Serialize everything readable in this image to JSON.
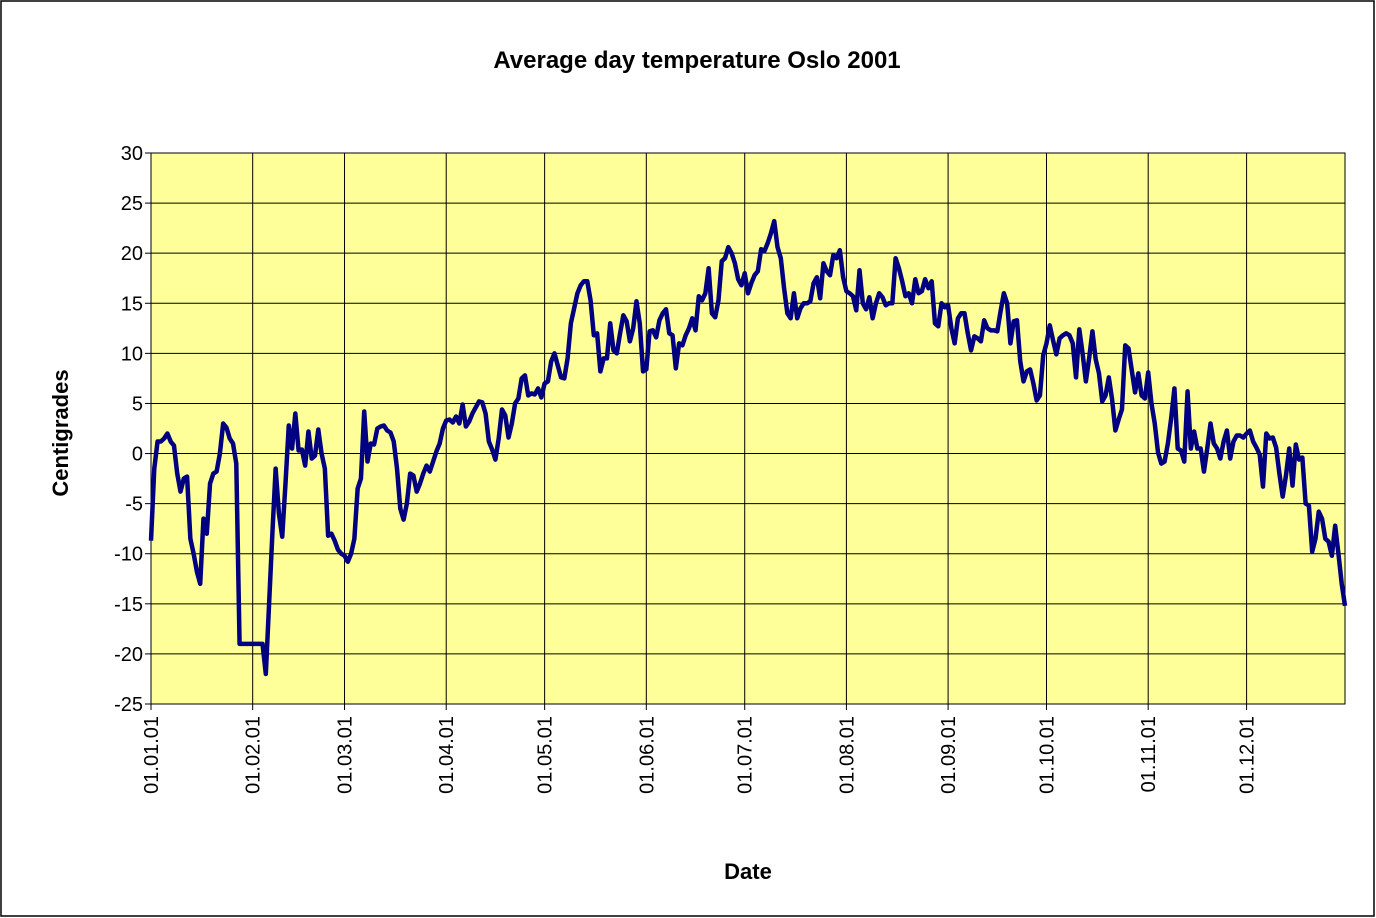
{
  "chart_data": {
    "type": "line",
    "title": "Average day temperature Oslo 2001",
    "xlabel": "Date",
    "ylabel": "Centigrades",
    "color": "#000080",
    "background": "#ffff99",
    "grid": true,
    "ylim": [
      -25,
      30
    ],
    "yticks": [
      -25,
      -20,
      -15,
      -10,
      -5,
      0,
      5,
      10,
      15,
      20,
      25,
      30
    ],
    "categories": [
      "01.01.01",
      null,
      null,
      null,
      null,
      null,
      null,
      null,
      null,
      null,
      null,
      null,
      null,
      null,
      null,
      null,
      null,
      null,
      null,
      null,
      null,
      null,
      null,
      null,
      null,
      null,
      null,
      null,
      null,
      null,
      null,
      "01.02.01",
      null,
      null,
      null,
      null,
      null,
      null,
      null,
      null,
      null,
      null,
      null,
      null,
      null,
      null,
      null,
      null,
      null,
      null,
      null,
      null,
      null,
      null,
      null,
      null,
      null,
      null,
      null,
      "01.03.01",
      null,
      null,
      null,
      null,
      null,
      null,
      null,
      null,
      null,
      null,
      null,
      null,
      null,
      null,
      null,
      null,
      null,
      null,
      null,
      null,
      null,
      null,
      null,
      null,
      null,
      null,
      null,
      null,
      null,
      null,
      "01.04.01",
      null,
      null,
      null,
      null,
      null,
      null,
      null,
      null,
      null,
      null,
      null,
      null,
      null,
      null,
      null,
      null,
      null,
      null,
      null,
      null,
      null,
      null,
      null,
      null,
      null,
      null,
      null,
      null,
      null,
      "01.05.01",
      null,
      null,
      null,
      null,
      null,
      null,
      null,
      null,
      null,
      null,
      null,
      null,
      null,
      null,
      null,
      null,
      null,
      null,
      null,
      null,
      null,
      null,
      null,
      null,
      null,
      null,
      null,
      null,
      null,
      null,
      "01.06.01",
      null,
      null,
      null,
      null,
      null,
      null,
      null,
      null,
      null,
      null,
      null,
      null,
      null,
      null,
      null,
      null,
      null,
      null,
      null,
      null,
      null,
      null,
      null,
      null,
      null,
      null,
      null,
      null,
      null,
      "01.07.01",
      null,
      null,
      null,
      null,
      null,
      null,
      null,
      null,
      null,
      null,
      null,
      null,
      null,
      null,
      null,
      null,
      null,
      null,
      null,
      null,
      null,
      null,
      null,
      null,
      null,
      null,
      null,
      null,
      null,
      null,
      "01.08.01",
      null,
      null,
      null,
      null,
      null,
      null,
      null,
      null,
      null,
      null,
      null,
      null,
      null,
      null,
      null,
      null,
      null,
      null,
      null,
      null,
      null,
      null,
      null,
      null,
      null,
      null,
      null,
      null,
      null,
      null,
      "01.09.01",
      null,
      null,
      null,
      null,
      null,
      null,
      null,
      null,
      null,
      null,
      null,
      null,
      null,
      null,
      null,
      null,
      null,
      null,
      null,
      null,
      null,
      null,
      null,
      null,
      null,
      null,
      null,
      null,
      null,
      "01.10.01",
      null,
      null,
      null,
      null,
      null,
      null,
      null,
      null,
      null,
      null,
      null,
      null,
      null,
      null,
      null,
      null,
      null,
      null,
      null,
      null,
      null,
      null,
      null,
      null,
      null,
      null,
      null,
      null,
      null,
      null,
      "01.11.01",
      null,
      null,
      null,
      null,
      null,
      null,
      null,
      null,
      null,
      null,
      null,
      null,
      null,
      null,
      null,
      null,
      null,
      null,
      null,
      null,
      null,
      null,
      null,
      null,
      null,
      null,
      null,
      null,
      null,
      "01.12.01",
      null,
      null,
      null,
      null,
      null,
      null,
      null,
      null,
      null,
      null,
      null,
      null,
      null,
      null,
      null,
      null,
      null,
      null,
      null,
      null,
      null,
      null,
      null,
      null,
      null,
      null,
      null,
      null,
      null,
      null
    ],
    "values": [
      -8.7,
      -1.5,
      1.2,
      1.2,
      1.5,
      2,
      1.2,
      0.8,
      -2,
      -3.8,
      -2.5,
      -2.3,
      -8.5,
      -10,
      -11.8,
      -13,
      -6.5,
      -8,
      -3,
      -2,
      -1.8,
      0,
      3,
      2.6,
      1.5,
      1,
      -1,
      -19,
      -19,
      -19,
      -19,
      -19,
      -19,
      -19,
      -19,
      -22,
      -15,
      -8,
      -1.5,
      -6,
      -8.3,
      -3,
      2.8,
      0.5,
      4,
      0.3,
      0.4,
      -1.2,
      2.2,
      -0.5,
      -0.2,
      2.4,
      0,
      -1.5,
      -8.2,
      -8,
      -8.7,
      -9.6,
      -10,
      -10.2,
      -10.8,
      -10,
      -8.5,
      -3.5,
      -2.5,
      4.2,
      -0.8,
      1,
      0.9,
      2.5,
      2.7,
      2.8,
      2.3,
      2.1,
      1.2,
      -1.5,
      -5.5,
      -6.6,
      -5,
      -2,
      -2.2,
      -3.8,
      -3,
      -2,
      -1.2,
      -1.8,
      -0.8,
      0.2,
      1,
      2.5,
      3.3,
      3.4,
      3.1,
      3.7,
      3,
      4.9,
      2.7,
      3.2,
      4,
      4.6,
      5.2,
      5.1,
      4,
      1.2,
      0.4,
      -0.6,
      1.5,
      4.4,
      3.8,
      1.6,
      3,
      5,
      5.5,
      7.5,
      7.8,
      5.8,
      6,
      5.9,
      6.5,
      5.6,
      7,
      7.2,
      9.2,
      10,
      8.8,
      7.6,
      7.5,
      9.5,
      13,
      14.5,
      16,
      16.8,
      17.2,
      17.2,
      15.3,
      11.8,
      12,
      8.2,
      9.5,
      9.5,
      13,
      10.3,
      10,
      12,
      13.8,
      13.2,
      11.2,
      12.5,
      15.2,
      13,
      8.2,
      8.4,
      12.2,
      12.3,
      11.6,
      13.3,
      14,
      14.4,
      12,
      11.8,
      8.5,
      11,
      10.8,
      11.8,
      12.5,
      13.5,
      12.3,
      15.7,
      15.3,
      16,
      18.5,
      14,
      13.6,
      15.3,
      19.2,
      19.5,
      20.6,
      20,
      19,
      17.4,
      16.8,
      18,
      16,
      17,
      17.8,
      18.2,
      20.4,
      20.2,
      21,
      22,
      23.2,
      20.6,
      19.5,
      16.5,
      14,
      13.5,
      16,
      13.5,
      14.5,
      15,
      15,
      15.2,
      17,
      17.6,
      15.5,
      19,
      18.2,
      17.8,
      19.8,
      19.5,
      20.3,
      17.6,
      16.2,
      16,
      15.7,
      14.3,
      18.3,
      15,
      14.4,
      15.6,
      13.5,
      15,
      16,
      15.6,
      14.8,
      15,
      15,
      19.5,
      18.5,
      17.2,
      15.7,
      16,
      15,
      17.4,
      16,
      16.2,
      17.4,
      16.5,
      17.2,
      13,
      12.7,
      15,
      14.6,
      14.8,
      12.5,
      11,
      13.5,
      14,
      14,
      12,
      10.3,
      11.7,
      11.5,
      11.2,
      13.3,
      12.5,
      12.3,
      12.3,
      12.2,
      14.2,
      16,
      15,
      11,
      13.2,
      13.3,
      9.2,
      7.2,
      8.2,
      8.4,
      7,
      5.3,
      5.8,
      9.8,
      11,
      12.8,
      11.3,
      9.9,
      11.5,
      11.8,
      12,
      11.8,
      11,
      7.6,
      12.4,
      10,
      7.2,
      9.5,
      12.2,
      9.4,
      8,
      5.2,
      5.8,
      7.6,
      5.4,
      2.3,
      3.4,
      4.4,
      10.8,
      10.5,
      8.3,
      6.1,
      8,
      5.8,
      5.5,
      8.1,
      5,
      3,
      0.1,
      -1,
      -0.8,
      1,
      3.5,
      6.5,
      0.5,
      0.3,
      -0.8,
      6.2,
      0.5,
      2.2,
      0.5,
      0.5,
      -1.8,
      0.5,
      3,
      1,
      0.5,
      -0.5,
      1.2,
      2.3,
      -0.5,
      1.2,
      1.8,
      1.8,
      1.6,
      2,
      2.3,
      1.2,
      0.6,
      -0.1,
      -3.3,
      2,
      1.5,
      1.6,
      0.6,
      -2,
      -4.3,
      -2.2,
      0.5,
      -3.2,
      0.9,
      -0.6,
      -0.4,
      -5,
      -5.2,
      -9.8,
      -8.5,
      -5.8,
      -6.5,
      -8.5,
      -8.8,
      -10.2,
      -7.2,
      -10,
      -13,
      -15.2
    ]
  }
}
